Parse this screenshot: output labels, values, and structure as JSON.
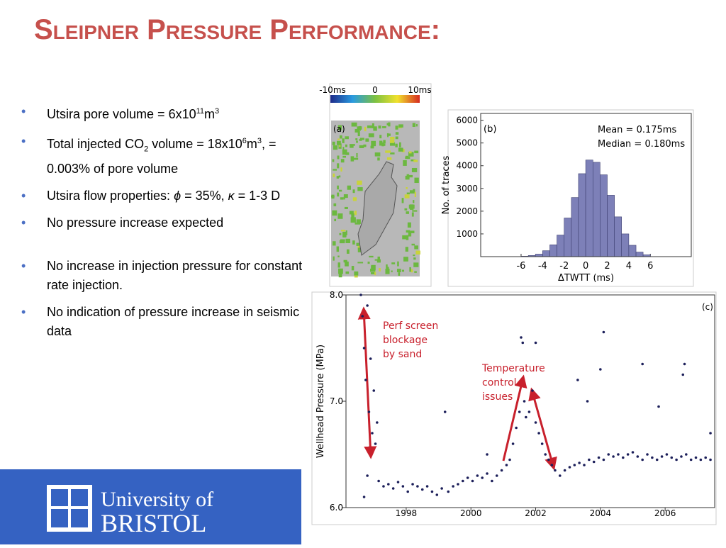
{
  "title": "Sleipner Pressure Performance:",
  "bullets": [
    [
      {
        "text": "Utsira pore volume = 6x10"
      },
      {
        "text": "11",
        "script": "sup"
      },
      {
        "text": "m"
      },
      {
        "text": "3",
        "script": "sup"
      }
    ],
    [
      {
        "text": "Total injected CO"
      },
      {
        "text": "2",
        "script": "sub"
      },
      {
        "text": " volume = 18x10"
      },
      {
        "text": "6",
        "script": "sup"
      },
      {
        "text": "m"
      },
      {
        "text": "3",
        "script": "sup"
      },
      {
        "text": ", = 0.003% of pore volume"
      }
    ],
    [
      {
        "text": "Utsira flow properties: "
      },
      {
        "text": "ϕ",
        "script": "italic"
      },
      {
        "text": " = 35%, "
      },
      {
        "text": "κ",
        "script": "italic"
      },
      {
        "text": " = 1-3 D"
      }
    ],
    [
      {
        "text": "No pressure increase expected"
      }
    ],
    [
      {
        "text": "No increase in injection pressure for constant rate injection."
      }
    ],
    [
      {
        "text": "No indication of pressure increase in seismic data"
      }
    ]
  ],
  "figure_a": {
    "panel_label": "(a)",
    "colorbar_ticks": [
      "-10ms",
      "0",
      "10ms"
    ]
  },
  "figure_b": {
    "type": "histogram",
    "panel_label": "(b)",
    "x_label": "ΔTWTT (ms)",
    "y_label": "No. of traces",
    "stats": [
      "Mean = 0.175ms",
      "Median = 0.180ms"
    ],
    "bins": [
      -6,
      -5.33,
      -4.67,
      -4,
      -3.33,
      -2.67,
      -2,
      -1.33,
      -0.67,
      0,
      0.67,
      1.33,
      2,
      2.67,
      3.33,
      4,
      4.67,
      5.33,
      6
    ],
    "values": [
      20,
      50,
      110,
      260,
      520,
      950,
      1700,
      2600,
      3650,
      4250,
      4150,
      3600,
      2700,
      1750,
      1000,
      500,
      200,
      80
    ],
    "color": "#7d80b8",
    "xlim": [
      -9.75,
      9.8
    ],
    "ylim": [
      0,
      6300
    ],
    "xticks": [
      -6,
      -4,
      -2,
      0,
      2,
      4,
      6
    ],
    "yticks": [
      1000,
      2000,
      3000,
      4000,
      5000,
      6000
    ]
  },
  "figure_c": {
    "type": "scatter",
    "panel_label": "(c)",
    "y_label": "Wellhead Pressure (MPa)",
    "annotations": [
      [
        "Perf screen",
        "blockage",
        "by sand"
      ],
      [
        "Temperature",
        "control",
        "issues"
      ]
    ],
    "color": "#1c1f5a",
    "xlim": [
      1996.14,
      2007.53
    ],
    "ylim": [
      6.0,
      8.0
    ],
    "xticks": [
      1998,
      2000,
      2002,
      2004,
      2006
    ],
    "yticks": [
      {
        "value": 6.0,
        "label": "6.0"
      },
      {
        "value": 7.0,
        "label": "7.0"
      },
      {
        "value": 8.0,
        "label": "8.0"
      }
    ],
    "x": [
      1996.6,
      1996.65,
      1996.7,
      1996.75,
      1996.8,
      1996.85,
      1996.9,
      1996.95,
      1997.0,
      1997.05,
      1997.1,
      1996.7,
      1996.8,
      1997.15,
      1997.3,
      1997.45,
      1997.6,
      1997.75,
      1997.9,
      1998.05,
      1998.2,
      1998.35,
      1998.5,
      1998.65,
      1998.8,
      1998.95,
      1999.1,
      1999.3,
      1999.45,
      1999.6,
      1999.75,
      1999.9,
      2000.05,
      2000.2,
      2000.35,
      2000.5,
      2000.65,
      2000.8,
      2000.95,
      2001.1,
      2001.2,
      2001.3,
      2001.4,
      2001.5,
      2001.55,
      2001.6,
      2001.65,
      2001.7,
      2001.8,
      2001.9,
      2002.0,
      2002.1,
      2002.2,
      2002.3,
      2002.4,
      2002.5,
      2002.6,
      2002.75,
      2002.9,
      2003.05,
      2003.2,
      2003.35,
      2003.5,
      2003.65,
      2003.8,
      2003.95,
      2004.1,
      2004.25,
      2004.4,
      2004.55,
      2004.7,
      2004.85,
      2005.0,
      2005.15,
      2005.3,
      2005.45,
      2005.6,
      2005.75,
      2005.9,
      2006.05,
      2006.2,
      2006.35,
      2006.5,
      2006.65,
      2006.8,
      2006.95,
      2007.1,
      2007.25,
      2007.4,
      2004.1,
      2002.0,
      2003.3,
      2005.3,
      2006.6,
      2006.55,
      2004.0,
      2000.5,
      1999.2,
      2003.6,
      2005.8,
      2007.4
    ],
    "y": [
      8.0,
      7.8,
      7.5,
      7.2,
      7.9,
      6.9,
      7.4,
      6.7,
      7.1,
      6.6,
      6.8,
      6.1,
      6.3,
      6.25,
      6.2,
      6.22,
      6.18,
      6.24,
      6.2,
      6.15,
      6.22,
      6.2,
      6.17,
      6.2,
      6.15,
      6.12,
      6.18,
      6.15,
      6.2,
      6.22,
      6.25,
      6.28,
      6.25,
      6.3,
      6.28,
      6.32,
      6.25,
      6.3,
      6.35,
      6.4,
      6.45,
      6.6,
      6.75,
      6.9,
      7.6,
      7.55,
      7.0,
      6.85,
      6.9,
      7.1,
      6.8,
      6.7,
      6.6,
      6.5,
      6.45,
      6.4,
      6.35,
      6.3,
      6.35,
      6.38,
      6.4,
      6.42,
      6.4,
      6.45,
      6.43,
      6.47,
      6.45,
      6.5,
      6.48,
      6.5,
      6.47,
      6.5,
      6.52,
      6.48,
      6.45,
      6.5,
      6.47,
      6.45,
      6.48,
      6.5,
      6.47,
      6.45,
      6.48,
      6.5,
      6.45,
      6.47,
      6.45,
      6.47,
      6.45,
      7.65,
      7.55,
      7.2,
      7.35,
      7.35,
      7.25,
      7.3,
      6.5,
      6.9,
      7.0,
      6.95,
      6.7
    ]
  },
  "logo": {
    "line1": "University of",
    "line2": "BRISTOL"
  }
}
